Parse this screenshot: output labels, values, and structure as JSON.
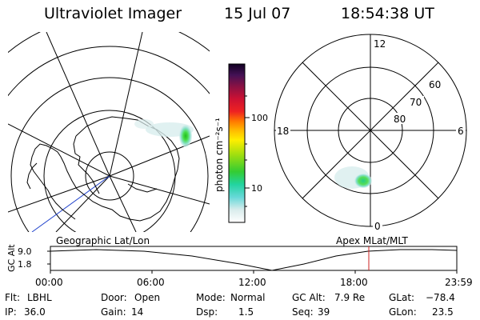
{
  "header": {
    "instrument": "Ultraviolet Imager",
    "date": "15 Jul 07",
    "time": "18:54:38 UT"
  },
  "colorbar": {
    "unit_label": "photon cm⁻²s⁻¹",
    "tick_labels": [
      "100",
      "10"
    ]
  },
  "left_panel": {
    "label": "Geographic Lat/Lon"
  },
  "right_panel": {
    "label": "Apex  MLat/MLT",
    "mlt_labels": {
      "top": "12",
      "right": "6",
      "bottom": "0",
      "left": "18"
    },
    "lat_labels": [
      "60",
      "70",
      "80"
    ]
  },
  "timeline": {
    "ylabel": "GC Alt",
    "yticks": [
      "9.0",
      "1.8"
    ],
    "xticks": [
      "00:00",
      "06:00",
      "12:00",
      "18:00",
      "23:59"
    ]
  },
  "info": {
    "filter": {
      "label": "Flt:",
      "value": "LBHL"
    },
    "ip": {
      "label": "IP:",
      "value": "36.0"
    },
    "door": {
      "label": "Door:",
      "value": "Open"
    },
    "gain": {
      "label": "Gain:",
      "value": "14"
    },
    "mode": {
      "label": "Mode:",
      "value": "Normal"
    },
    "dsp": {
      "label": "Dsp:",
      "value": "1.5"
    },
    "gc_alt": {
      "label": "GC Alt:",
      "value": "7.9 Re"
    },
    "seq": {
      "label": "Seq:",
      "value": "39"
    },
    "glat": {
      "label": "GLat:",
      "value": "−78.4"
    },
    "glon": {
      "label": "GLon:",
      "value": "23.5"
    }
  }
}
